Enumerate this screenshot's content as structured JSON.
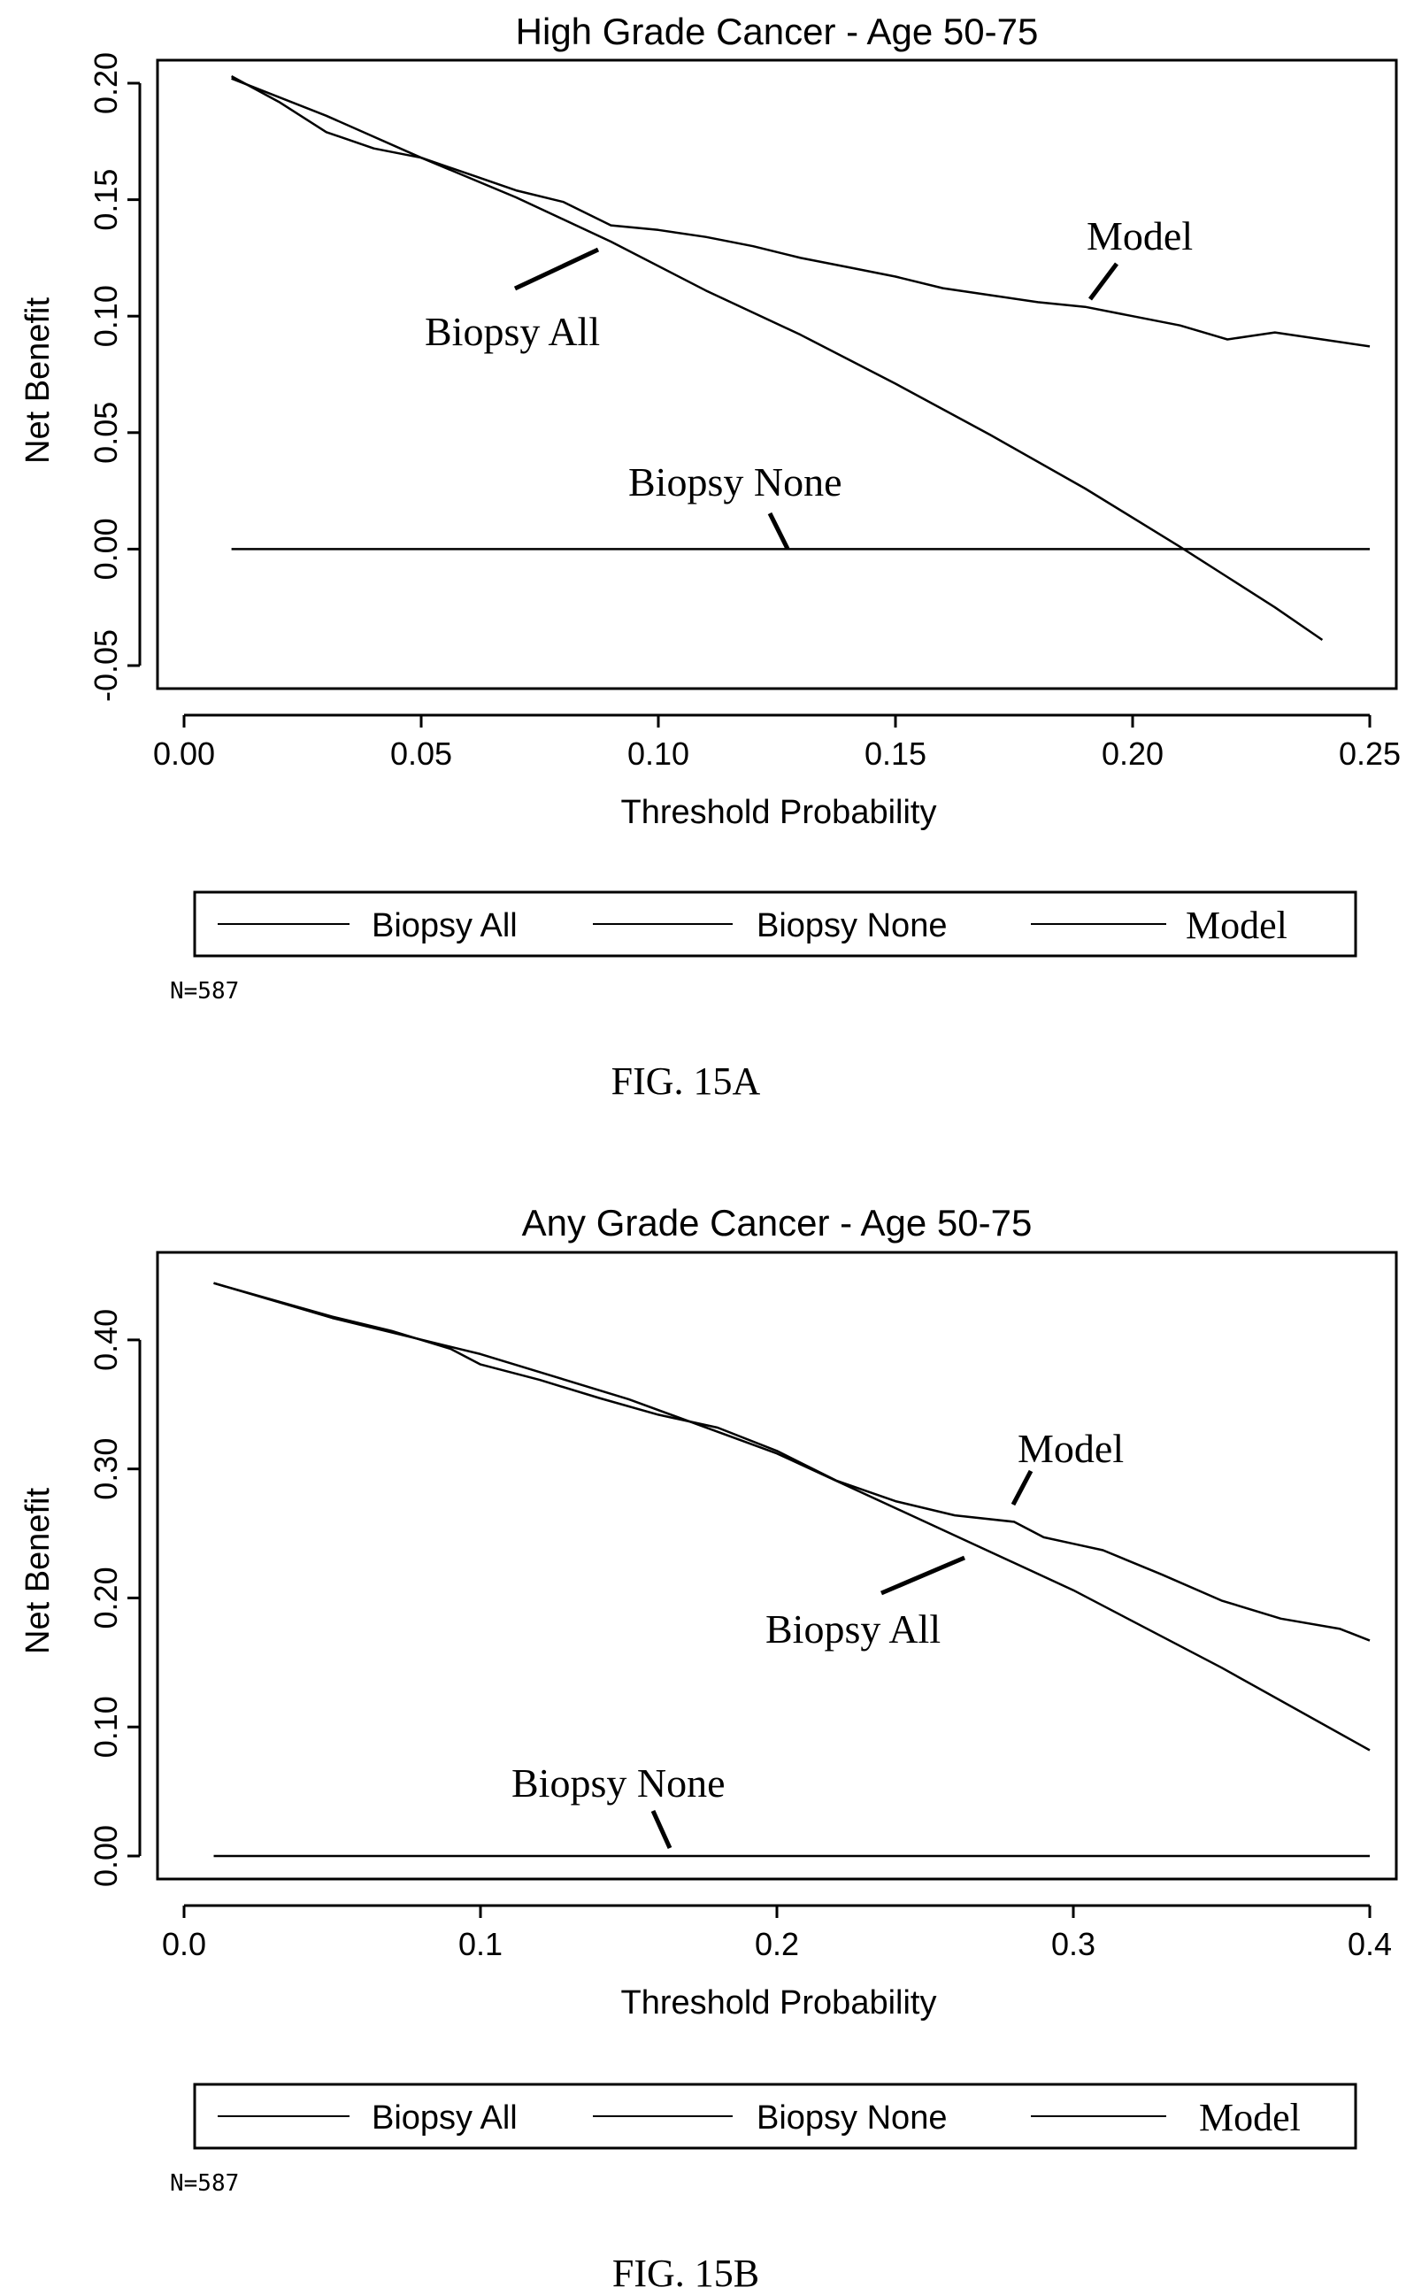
{
  "chart_data": [
    {
      "type": "line",
      "title": "High Grade Cancer - Age 50-75",
      "xlabel": "Threshold Probability",
      "ylabel": "Net Benefit",
      "xlim": [
        0.0,
        0.25
      ],
      "ylim": [
        -0.05,
        0.2
      ],
      "xticks": [
        0.0,
        0.05,
        0.1,
        0.15,
        0.2,
        0.25
      ],
      "xtick_labels": [
        "0.00",
        "0.05",
        "0.10",
        "0.15",
        "0.20",
        "0.25"
      ],
      "yticks": [
        -0.05,
        0.0,
        0.05,
        0.1,
        0.15,
        0.2
      ],
      "ytick_labels": [
        "-0.05",
        "0.00",
        "0.05",
        "0.10",
        "0.15",
        "0.20"
      ],
      "grid": false,
      "legend_position": "bottom",
      "series": [
        {
          "name": "Biopsy All",
          "x": [
            0.01,
            0.03,
            0.05,
            0.07,
            0.09,
            0.11,
            0.13,
            0.15,
            0.17,
            0.19,
            0.21,
            0.22,
            0.23,
            0.24
          ],
          "y": [
            0.202,
            0.186,
            0.168,
            0.151,
            0.132,
            0.111,
            0.092,
            0.071,
            0.049,
            0.026,
            0.001,
            -0.012,
            -0.025,
            -0.039
          ]
        },
        {
          "name": "Biopsy None",
          "x": [
            0.01,
            0.25
          ],
          "y": [
            0.0,
            0.0
          ]
        },
        {
          "name": "Model",
          "x": [
            0.01,
            0.02,
            0.03,
            0.04,
            0.05,
            0.06,
            0.07,
            0.08,
            0.09,
            0.1,
            0.11,
            0.12,
            0.13,
            0.14,
            0.15,
            0.16,
            0.17,
            0.18,
            0.19,
            0.2,
            0.21,
            0.22,
            0.23,
            0.24,
            0.25
          ],
          "y": [
            0.203,
            0.192,
            0.179,
            0.172,
            0.168,
            0.161,
            0.154,
            0.149,
            0.139,
            0.137,
            0.134,
            0.13,
            0.125,
            0.121,
            0.117,
            0.112,
            0.109,
            0.106,
            0.104,
            0.1,
            0.096,
            0.09,
            0.093,
            0.09,
            0.087
          ]
        }
      ],
      "annotations": [
        {
          "text": "Model",
          "x": 0.2
        },
        {
          "text": "Biopsy All",
          "x": 0.075
        },
        {
          "text": "Biopsy None",
          "x": 0.13
        }
      ],
      "footnote": "N=587",
      "caption": "FIG. 15A"
    },
    {
      "type": "line",
      "title": "Any Grade Cancer - Age 50-75",
      "xlabel": "Threshold Probability",
      "ylabel": "Net Benefit",
      "xlim": [
        0.0,
        0.4
      ],
      "ylim": [
        0.0,
        0.45
      ],
      "xticks": [
        0.0,
        0.1,
        0.2,
        0.3,
        0.4
      ],
      "xtick_labels": [
        "0.0",
        "0.1",
        "0.2",
        "0.3",
        "0.4"
      ],
      "yticks": [
        0.0,
        0.1,
        0.2,
        0.3,
        0.4
      ],
      "ytick_labels": [
        "0.00",
        "0.10",
        "0.20",
        "0.30",
        "0.40"
      ],
      "grid": false,
      "legend_position": "bottom",
      "series": [
        {
          "name": "Biopsy All",
          "x": [
            0.01,
            0.05,
            0.1,
            0.15,
            0.2,
            0.25,
            0.3,
            0.35,
            0.4
          ],
          "y": [
            0.444,
            0.417,
            0.389,
            0.354,
            0.312,
            0.259,
            0.206,
            0.146,
            0.082
          ]
        },
        {
          "name": "Biopsy None",
          "x": [
            0.01,
            0.4
          ],
          "y": [
            0.0,
            0.0
          ]
        },
        {
          "name": "Model",
          "x": [
            0.01,
            0.03,
            0.05,
            0.07,
            0.09,
            0.1,
            0.12,
            0.14,
            0.16,
            0.18,
            0.2,
            0.22,
            0.24,
            0.26,
            0.28,
            0.29,
            0.3,
            0.31,
            0.33,
            0.35,
            0.37,
            0.39,
            0.4
          ],
          "y": [
            0.444,
            0.431,
            0.418,
            0.407,
            0.393,
            0.381,
            0.369,
            0.355,
            0.342,
            0.332,
            0.314,
            0.291,
            0.275,
            0.264,
            0.259,
            0.247,
            0.242,
            0.237,
            0.218,
            0.198,
            0.184,
            0.176,
            0.167
          ]
        }
      ],
      "annotations": [
        {
          "text": "Model",
          "x": 0.3
        },
        {
          "text": "Biopsy All",
          "x": 0.24
        },
        {
          "text": "Biopsy None",
          "x": 0.15
        }
      ],
      "footnote": "N=587",
      "caption": "FIG. 15B"
    }
  ]
}
